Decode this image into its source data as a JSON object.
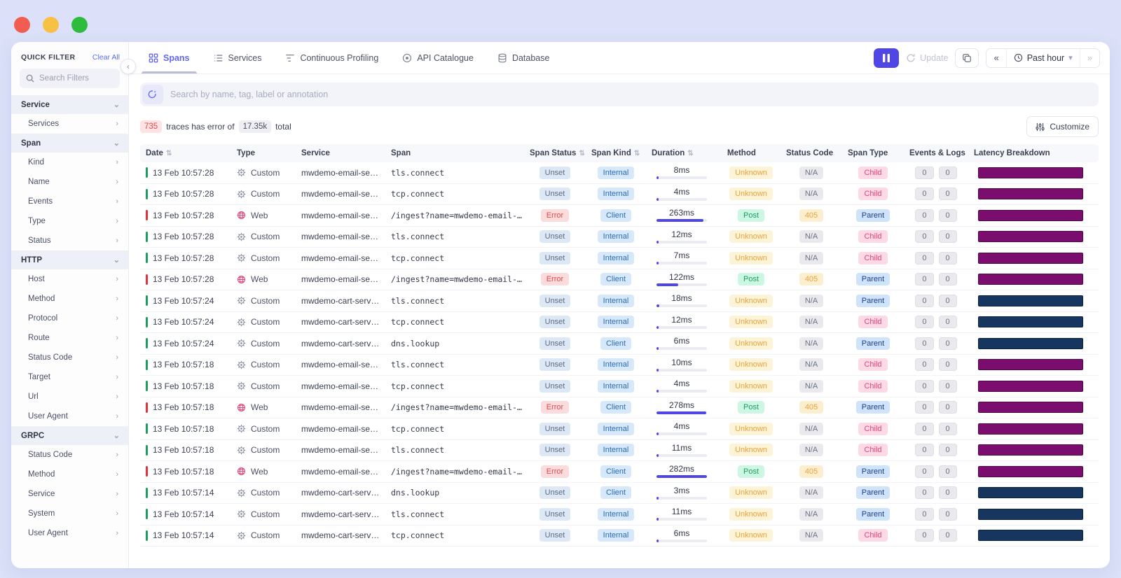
{
  "sidebar": {
    "title": "QUICK FILTER",
    "clear_all": "Clear All",
    "search_placeholder": "Search Filters",
    "sections": [
      {
        "label": "Service",
        "items": [
          "Services"
        ]
      },
      {
        "label": "Span",
        "items": [
          "Kind",
          "Name",
          "Events",
          "Type",
          "Status"
        ]
      },
      {
        "label": "HTTP",
        "items": [
          "Host",
          "Method",
          "Protocol",
          "Route",
          "Status Code",
          "Target",
          "Url",
          "User Agent"
        ]
      },
      {
        "label": "GRPC",
        "items": [
          "Status Code",
          "Method",
          "Service",
          "System",
          "User Agent"
        ]
      }
    ]
  },
  "tabs": [
    {
      "label": "Spans",
      "icon": "grid-icon",
      "active": true
    },
    {
      "label": "Services",
      "icon": "list-icon",
      "active": false
    },
    {
      "label": "Continuous Profiling",
      "icon": "flamegraph-icon",
      "active": false
    },
    {
      "label": "API Catalogue",
      "icon": "globe-icon",
      "active": false
    },
    {
      "label": "Database",
      "icon": "database-icon",
      "active": false
    }
  ],
  "toolbar": {
    "update_label": "Update",
    "time_range": "Past hour"
  },
  "search": {
    "placeholder": "Search by name, tag, label or annotation"
  },
  "stats": {
    "error_count": "735",
    "middle_text": "traces has error of",
    "total_count": "17.35k",
    "suffix": "total",
    "customize_label": "Customize"
  },
  "table": {
    "columns": [
      {
        "label": "Date",
        "sortable": true
      },
      {
        "label": "Type",
        "sortable": false
      },
      {
        "label": "Service",
        "sortable": false
      },
      {
        "label": "Span",
        "sortable": false
      },
      {
        "label": "Span Status",
        "sortable": true
      },
      {
        "label": "Span Kind",
        "sortable": true
      },
      {
        "label": "Duration",
        "sortable": true
      },
      {
        "label": "Method",
        "sortable": false
      },
      {
        "label": "Status Code",
        "sortable": false
      },
      {
        "label": "Span Type",
        "sortable": false
      },
      {
        "label": "Events & Logs",
        "sortable": false
      },
      {
        "label": "Latency Breakdown",
        "sortable": false
      }
    ],
    "max_duration_ms": 282,
    "rows": [
      {
        "indicator": "green",
        "date": "13 Feb 10:57:28",
        "type": "Custom",
        "service": "mwdemo-email-se…",
        "span": "tls.connect",
        "span_status": "Unset",
        "span_kind": "Internal",
        "duration_ms": 8,
        "duration": "8ms",
        "method": "Unknown",
        "status_code": "N/A",
        "span_type": "Child",
        "events": "0",
        "logs": "0",
        "latency_color": "magenta"
      },
      {
        "indicator": "green",
        "date": "13 Feb 10:57:28",
        "type": "Custom",
        "service": "mwdemo-email-se…",
        "span": "tcp.connect",
        "span_status": "Unset",
        "span_kind": "Internal",
        "duration_ms": 4,
        "duration": "4ms",
        "method": "Unknown",
        "status_code": "N/A",
        "span_type": "Child",
        "events": "0",
        "logs": "0",
        "latency_color": "magenta"
      },
      {
        "indicator": "red",
        "date": "13 Feb 10:57:28",
        "type": "Web",
        "service": "mwdemo-email-se…",
        "span": "/ingest?name=mwdemo-email-…",
        "span_status": "Error",
        "span_kind": "Client",
        "duration_ms": 263,
        "duration": "263ms",
        "method": "Post",
        "status_code": "405",
        "span_type": "Parent",
        "events": "0",
        "logs": "0",
        "latency_color": "magenta"
      },
      {
        "indicator": "green",
        "date": "13 Feb 10:57:28",
        "type": "Custom",
        "service": "mwdemo-email-se…",
        "span": "tls.connect",
        "span_status": "Unset",
        "span_kind": "Internal",
        "duration_ms": 12,
        "duration": "12ms",
        "method": "Unknown",
        "status_code": "N/A",
        "span_type": "Child",
        "events": "0",
        "logs": "0",
        "latency_color": "magenta"
      },
      {
        "indicator": "green",
        "date": "13 Feb 10:57:28",
        "type": "Custom",
        "service": "mwdemo-email-se…",
        "span": "tcp.connect",
        "span_status": "Unset",
        "span_kind": "Internal",
        "duration_ms": 7,
        "duration": "7ms",
        "method": "Unknown",
        "status_code": "N/A",
        "span_type": "Child",
        "events": "0",
        "logs": "0",
        "latency_color": "magenta"
      },
      {
        "indicator": "red",
        "date": "13 Feb 10:57:28",
        "type": "Web",
        "service": "mwdemo-email-se…",
        "span": "/ingest?name=mwdemo-email-…",
        "span_status": "Error",
        "span_kind": "Client",
        "duration_ms": 122,
        "duration": "122ms",
        "method": "Post",
        "status_code": "405",
        "span_type": "Parent",
        "events": "0",
        "logs": "0",
        "latency_color": "magenta"
      },
      {
        "indicator": "green",
        "date": "13 Feb 10:57:24",
        "type": "Custom",
        "service": "mwdemo-cart-serv…",
        "span": "tls.connect",
        "span_status": "Unset",
        "span_kind": "Internal",
        "duration_ms": 18,
        "duration": "18ms",
        "method": "Unknown",
        "status_code": "N/A",
        "span_type": "Parent",
        "events": "0",
        "logs": "0",
        "latency_color": "navy"
      },
      {
        "indicator": "green",
        "date": "13 Feb 10:57:24",
        "type": "Custom",
        "service": "mwdemo-cart-serv…",
        "span": "tcp.connect",
        "span_status": "Unset",
        "span_kind": "Internal",
        "duration_ms": 12,
        "duration": "12ms",
        "method": "Unknown",
        "status_code": "N/A",
        "span_type": "Child",
        "events": "0",
        "logs": "0",
        "latency_color": "navy"
      },
      {
        "indicator": "green",
        "date": "13 Feb 10:57:24",
        "type": "Custom",
        "service": "mwdemo-cart-serv…",
        "span": "dns.lookup",
        "span_status": "Unset",
        "span_kind": "Client",
        "duration_ms": 6,
        "duration": "6ms",
        "method": "Unknown",
        "status_code": "N/A",
        "span_type": "Parent",
        "events": "0",
        "logs": "0",
        "latency_color": "navy"
      },
      {
        "indicator": "green",
        "date": "13 Feb 10:57:18",
        "type": "Custom",
        "service": "mwdemo-email-se…",
        "span": "tls.connect",
        "span_status": "Unset",
        "span_kind": "Internal",
        "duration_ms": 10,
        "duration": "10ms",
        "method": "Unknown",
        "status_code": "N/A",
        "span_type": "Child",
        "events": "0",
        "logs": "0",
        "latency_color": "magenta"
      },
      {
        "indicator": "green",
        "date": "13 Feb 10:57:18",
        "type": "Custom",
        "service": "mwdemo-email-se…",
        "span": "tcp.connect",
        "span_status": "Unset",
        "span_kind": "Internal",
        "duration_ms": 4,
        "duration": "4ms",
        "method": "Unknown",
        "status_code": "N/A",
        "span_type": "Child",
        "events": "0",
        "logs": "0",
        "latency_color": "magenta"
      },
      {
        "indicator": "red",
        "date": "13 Feb 10:57:18",
        "type": "Web",
        "service": "mwdemo-email-se…",
        "span": "/ingest?name=mwdemo-email-…",
        "span_status": "Error",
        "span_kind": "Client",
        "duration_ms": 278,
        "duration": "278ms",
        "method": "Post",
        "status_code": "405",
        "span_type": "Parent",
        "events": "0",
        "logs": "0",
        "latency_color": "magenta"
      },
      {
        "indicator": "green",
        "date": "13 Feb 10:57:18",
        "type": "Custom",
        "service": "mwdemo-email-se…",
        "span": "tcp.connect",
        "span_status": "Unset",
        "span_kind": "Internal",
        "duration_ms": 4,
        "duration": "4ms",
        "method": "Unknown",
        "status_code": "N/A",
        "span_type": "Child",
        "events": "0",
        "logs": "0",
        "latency_color": "magenta"
      },
      {
        "indicator": "green",
        "date": "13 Feb 10:57:18",
        "type": "Custom",
        "service": "mwdemo-email-se…",
        "span": "tls.connect",
        "span_status": "Unset",
        "span_kind": "Internal",
        "duration_ms": 11,
        "duration": "11ms",
        "method": "Unknown",
        "status_code": "N/A",
        "span_type": "Child",
        "events": "0",
        "logs": "0",
        "latency_color": "magenta"
      },
      {
        "indicator": "red",
        "date": "13 Feb 10:57:18",
        "type": "Web",
        "service": "mwdemo-email-se…",
        "span": "/ingest?name=mwdemo-email-…",
        "span_status": "Error",
        "span_kind": "Client",
        "duration_ms": 282,
        "duration": "282ms",
        "method": "Post",
        "status_code": "405",
        "span_type": "Parent",
        "events": "0",
        "logs": "0",
        "latency_color": "magenta"
      },
      {
        "indicator": "green",
        "date": "13 Feb 10:57:14",
        "type": "Custom",
        "service": "mwdemo-cart-serv…",
        "span": "dns.lookup",
        "span_status": "Unset",
        "span_kind": "Client",
        "duration_ms": 3,
        "duration": "3ms",
        "method": "Unknown",
        "status_code": "N/A",
        "span_type": "Parent",
        "events": "0",
        "logs": "0",
        "latency_color": "navy"
      },
      {
        "indicator": "green",
        "date": "13 Feb 10:57:14",
        "type": "Custom",
        "service": "mwdemo-cart-serv…",
        "span": "tls.connect",
        "span_status": "Unset",
        "span_kind": "Internal",
        "duration_ms": 11,
        "duration": "11ms",
        "method": "Unknown",
        "status_code": "N/A",
        "span_type": "Parent",
        "events": "0",
        "logs": "0",
        "latency_color": "navy"
      },
      {
        "indicator": "green",
        "date": "13 Feb 10:57:14",
        "type": "Custom",
        "service": "mwdemo-cart-serv…",
        "span": "tcp.connect",
        "span_status": "Unset",
        "span_kind": "Internal",
        "duration_ms": 6,
        "duration": "6ms",
        "method": "Unknown",
        "status_code": "N/A",
        "span_type": "Child",
        "events": "0",
        "logs": "0",
        "latency_color": "navy"
      }
    ]
  },
  "colors": {
    "accent": "#4f46e5",
    "latency_magenta": "#7b0d6e",
    "latency_navy": "#16355f",
    "indicator_ok": "#1f9d61",
    "indicator_error": "#e0343c"
  }
}
